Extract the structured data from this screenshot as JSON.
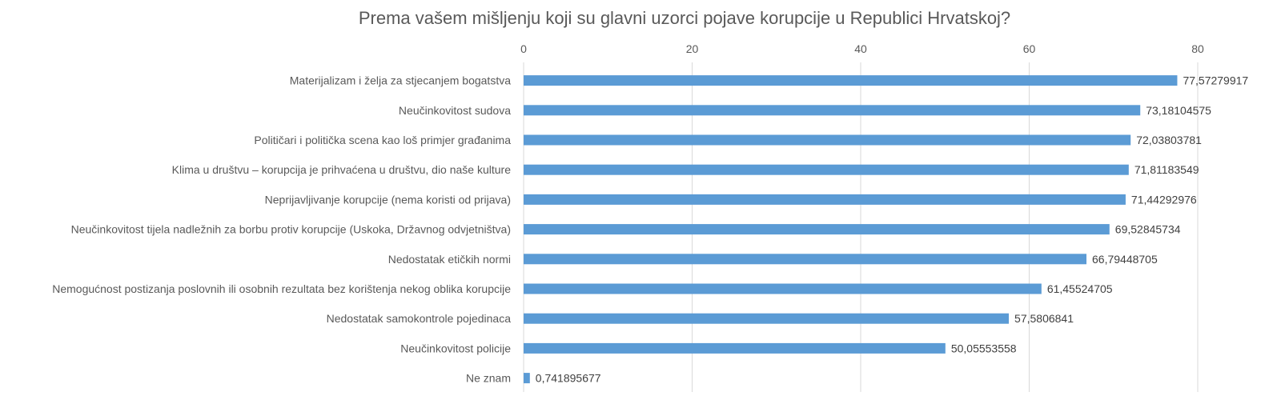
{
  "chart_data": {
    "type": "bar",
    "orientation": "horizontal",
    "title": "Prema vašem mišljenju koji su glavni uzorci pojave korupcije u Republici Hrvatskoj?",
    "xlim": [
      0,
      80
    ],
    "x_ticks": [
      0,
      20,
      40,
      60,
      80
    ],
    "grid": true,
    "bar_color": "#5b9bd5",
    "categories": [
      "Materijalizam i želja za stjecanjem bogatstva",
      "Neučinkovitost sudova",
      "Političari i politička scena kao loš primjer građanima",
      "Klima u društvu – korupcija je prihvaćena u društvu, dio naše kulture",
      "Neprijavljivanje korupcije (nema koristi od prijava)",
      "Neučinkovitost tijela nadležnih za borbu protiv korupcije (Uskoka, Državnog odvjetništva)",
      "Nedostatak etičkih normi",
      "Nemogućnost postizanja poslovnih ili osobnih rezultata bez korištenja nekog oblika korupcije",
      "Nedostatak samokontrole pojedinaca",
      "Neučinkovitost policije",
      "Ne znam"
    ],
    "values": [
      77.57279917,
      73.18104575,
      72.03803781,
      71.81183549,
      71.44292976,
      69.52845734,
      66.79448705,
      61.45524705,
      57.5806841,
      50.05553558,
      0.741895677
    ],
    "value_labels": [
      "77,57279917",
      "73,18104575",
      "72,03803781",
      "71,81183549",
      "71,44292976",
      "69,52845734",
      "66,79448705",
      "61,45524705",
      "57,5806841",
      "50,05553558",
      "0,741895677"
    ]
  }
}
